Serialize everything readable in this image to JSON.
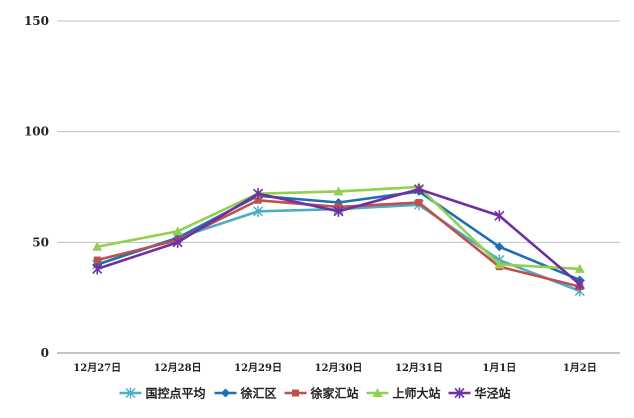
{
  "chart_data": {
    "type": "line",
    "title": "",
    "xlabel": "",
    "ylabel": "",
    "categories": [
      "12月27日",
      "12月28日",
      "12月29日",
      "12月30日",
      "12月31日",
      "1月1日",
      "1月2日"
    ],
    "ylim": [
      0,
      150
    ],
    "yticks": [
      0,
      50,
      100,
      150
    ],
    "grid": true,
    "legend_position": "bottom",
    "series": [
      {
        "name": "国控点平均",
        "color": "#4bacc6",
        "marker": "star",
        "values": [
          40,
          52,
          64,
          65,
          67,
          42,
          28
        ]
      },
      {
        "name": "徐汇区",
        "color": "#1f6fb5",
        "marker": "diamond",
        "values": [
          40,
          52,
          71,
          68,
          73,
          48,
          33
        ]
      },
      {
        "name": "徐家汇站",
        "color": "#c0504d",
        "marker": "square",
        "values": [
          42,
          51,
          69,
          66,
          68,
          39,
          30
        ]
      },
      {
        "name": "上师大站",
        "color": "#92d050",
        "marker": "triangle",
        "values": [
          48,
          55,
          72,
          73,
          75,
          40,
          38
        ]
      },
      {
        "name": "华泾站",
        "color": "#7030a0",
        "marker": "asterisk",
        "values": [
          38,
          50,
          72,
          64,
          74,
          62,
          31
        ]
      }
    ]
  }
}
